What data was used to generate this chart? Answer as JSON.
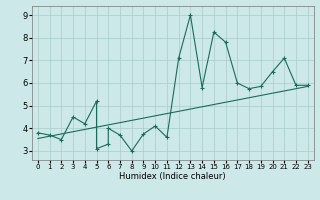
{
  "title": "",
  "xlabel": "Humidex (Indice chaleur)",
  "xlim": [
    -0.5,
    23.5
  ],
  "ylim": [
    2.6,
    9.4
  ],
  "xticks": [
    0,
    1,
    2,
    3,
    4,
    5,
    6,
    7,
    8,
    9,
    10,
    11,
    12,
    13,
    14,
    15,
    16,
    17,
    18,
    19,
    20,
    21,
    22,
    23
  ],
  "yticks": [
    3,
    4,
    5,
    6,
    7,
    8,
    9
  ],
  "bg_color": "#cce8e8",
  "line_color": "#1a6b5a",
  "grid_color": "#aacccc",
  "scatter_x": [
    0,
    1,
    2,
    3,
    4,
    5,
    5,
    6,
    6,
    7,
    8,
    9,
    10,
    11,
    12,
    13,
    14,
    15,
    16,
    17,
    18,
    19,
    20,
    21,
    22,
    23
  ],
  "scatter_y": [
    3.8,
    3.7,
    3.5,
    4.5,
    4.2,
    5.2,
    3.1,
    3.3,
    4.0,
    3.7,
    3.0,
    3.75,
    4.1,
    3.6,
    7.1,
    9.0,
    5.8,
    8.25,
    7.8,
    6.0,
    5.75,
    5.85,
    6.5,
    7.1,
    5.9,
    5.9
  ],
  "trend_x": [
    0,
    23
  ],
  "trend_y": [
    3.55,
    5.85
  ]
}
